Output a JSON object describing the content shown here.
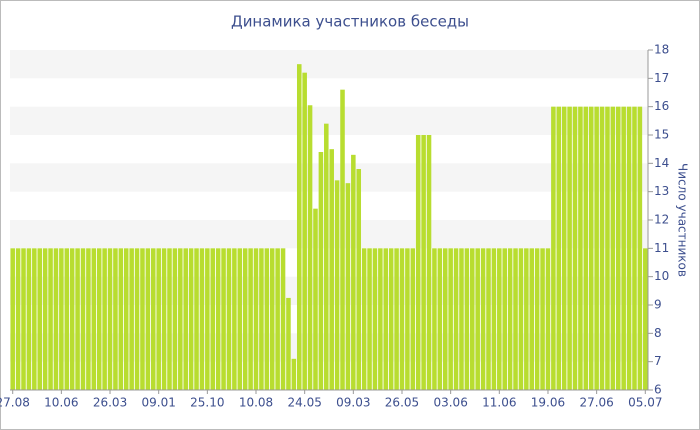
{
  "chart_data": {
    "type": "bar",
    "title": "Динамика участников беседы",
    "y_axis_label": "Число участников",
    "categories": [
      "27.08",
      null,
      null,
      null,
      null,
      null,
      null,
      null,
      null,
      "10.06",
      null,
      null,
      null,
      null,
      null,
      null,
      null,
      null,
      "26.03",
      null,
      null,
      null,
      null,
      null,
      null,
      null,
      null,
      "09.01",
      null,
      null,
      null,
      null,
      null,
      null,
      null,
      null,
      "25.10",
      null,
      null,
      null,
      null,
      null,
      null,
      null,
      null,
      "10.08",
      null,
      null,
      null,
      null,
      null,
      null,
      null,
      null,
      "24.05",
      null,
      null,
      null,
      null,
      null,
      null,
      null,
      null,
      "09.03",
      null,
      null,
      null,
      null,
      null,
      null,
      null,
      null,
      "26.05",
      null,
      null,
      null,
      null,
      null,
      null,
      null,
      null,
      "03.06",
      null,
      null,
      null,
      null,
      null,
      null,
      null,
      null,
      "11.06",
      null,
      null,
      null,
      null,
      null,
      null,
      null,
      null,
      "19.06",
      null,
      null,
      null,
      null,
      null,
      null,
      null,
      null,
      "27.06",
      null,
      null,
      null,
      null,
      null,
      null,
      null,
      null,
      "05.07"
    ],
    "values": [
      11,
      11,
      11,
      11,
      11,
      11,
      11,
      11,
      11,
      11,
      11,
      11,
      11,
      11,
      11,
      11,
      11,
      11,
      11,
      11,
      11,
      11,
      11,
      11,
      11,
      11,
      11,
      11,
      11,
      11,
      11,
      11,
      11,
      11,
      11,
      11,
      11,
      11,
      11,
      11,
      11,
      11,
      11,
      11,
      11,
      11,
      11,
      11,
      11,
      11,
      11,
      9.25,
      7.1,
      17.5,
      17.2,
      16.05,
      12.4,
      14.4,
      15.4,
      14.5,
      13.4,
      16.6,
      13.3,
      14.3,
      13.8,
      11,
      11,
      11,
      11,
      11,
      11,
      11,
      11,
      11,
      11,
      15,
      15,
      15,
      11,
      11,
      11,
      11,
      11,
      11,
      11,
      11,
      11,
      11,
      11,
      11,
      11,
      11,
      11,
      11,
      11,
      11,
      11,
      11,
      11,
      11,
      16,
      16,
      16,
      16,
      16,
      16,
      16,
      16,
      16,
      16,
      16,
      16,
      16,
      16,
      16,
      16,
      16,
      11
    ],
    "color": "#b8dd30",
    "ylim": [
      6,
      18
    ],
    "yticks": [
      6,
      7,
      8,
      9,
      10,
      11,
      12,
      13,
      14,
      15,
      16,
      17,
      18
    ],
    "y_axis_side": "right",
    "grid_bands": true
  }
}
